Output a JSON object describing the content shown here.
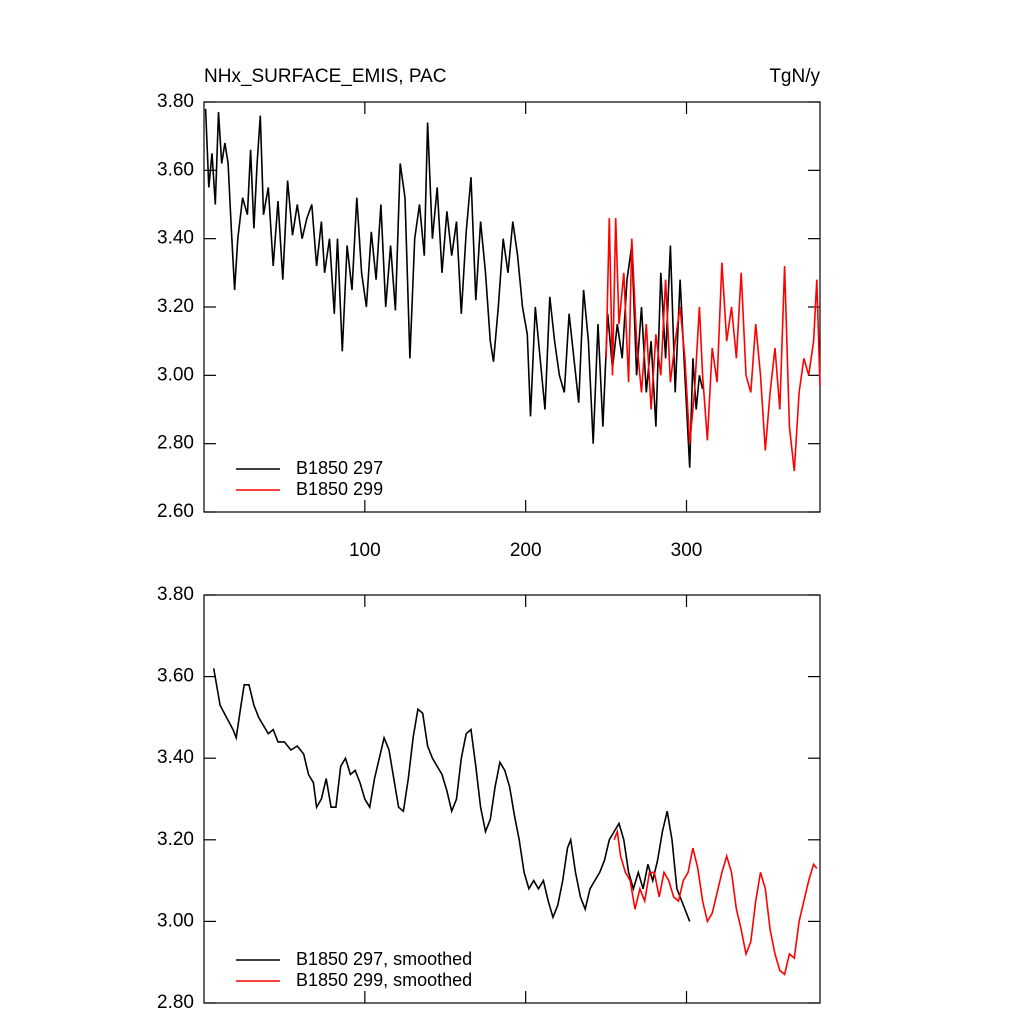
{
  "chart_data": [
    {
      "type": "line",
      "title": "NHx_SURFACE_EMIS, PAC",
      "units": "TgN/y",
      "xlim": [
        0,
        383
      ],
      "xticks": [
        100,
        200,
        300
      ],
      "xtick_labels": true,
      "ylim": [
        2.6,
        3.8
      ],
      "yticks": [
        {
          "value": 2.6,
          "label": "2.60"
        },
        {
          "value": 2.8,
          "label": "2.80"
        },
        {
          "value": 3.0,
          "label": "3.00"
        },
        {
          "value": 3.2,
          "label": "3.20"
        },
        {
          "value": 3.4,
          "label": "3.40"
        },
        {
          "value": 3.6,
          "label": "3.60"
        },
        {
          "value": 3.8,
          "label": "3.80"
        }
      ],
      "legend": "lower left",
      "series": [
        {
          "name": "B1850 297",
          "color": "#000000",
          "x": [
            1,
            3,
            5,
            7,
            9,
            11,
            13,
            15,
            17,
            19,
            21,
            24,
            27,
            29,
            31,
            33,
            35,
            37,
            40,
            43,
            46,
            49,
            52,
            55,
            58,
            61,
            64,
            67,
            70,
            73,
            75,
            78,
            81,
            83,
            86,
            89,
            92,
            95,
            98,
            101,
            104,
            107,
            110,
            113,
            116,
            119,
            122,
            125,
            128,
            131,
            134,
            137,
            139,
            142,
            145,
            148,
            151,
            154,
            157,
            160,
            163,
            166,
            169,
            172,
            175,
            178,
            180,
            183,
            186,
            189,
            192,
            195,
            198,
            201,
            203,
            206,
            209,
            212,
            215,
            218,
            221,
            224,
            227,
            230,
            233,
            236,
            239,
            242,
            245,
            248,
            251,
            254,
            257,
            260,
            263,
            266,
            269,
            272,
            275,
            278,
            281,
            284,
            287,
            290,
            293,
            296,
            299,
            302,
            304,
            306,
            308,
            310
          ],
          "values": [
            3.78,
            3.55,
            3.65,
            3.5,
            3.77,
            3.62,
            3.68,
            3.62,
            3.43,
            3.25,
            3.4,
            3.52,
            3.47,
            3.66,
            3.43,
            3.62,
            3.76,
            3.47,
            3.55,
            3.32,
            3.51,
            3.28,
            3.57,
            3.41,
            3.5,
            3.4,
            3.46,
            3.5,
            3.32,
            3.45,
            3.3,
            3.4,
            3.18,
            3.4,
            3.07,
            3.38,
            3.25,
            3.52,
            3.3,
            3.2,
            3.42,
            3.28,
            3.5,
            3.2,
            3.38,
            3.19,
            3.62,
            3.52,
            3.05,
            3.4,
            3.5,
            3.35,
            3.74,
            3.4,
            3.55,
            3.3,
            3.48,
            3.35,
            3.45,
            3.18,
            3.42,
            3.58,
            3.22,
            3.45,
            3.3,
            3.1,
            3.04,
            3.2,
            3.4,
            3.3,
            3.45,
            3.35,
            3.2,
            3.12,
            2.88,
            3.2,
            3.05,
            2.9,
            3.23,
            3.1,
            3.0,
            2.95,
            3.18,
            3.05,
            2.92,
            3.25,
            3.1,
            2.8,
            3.15,
            2.85,
            3.18,
            3.02,
            3.15,
            3.05,
            3.28,
            3.38,
            3.0,
            3.2,
            2.95,
            3.1,
            2.85,
            3.3,
            3.05,
            3.38,
            2.95,
            3.28,
            3.0,
            2.73,
            3.05,
            2.9,
            3.0,
            2.96
          ]
        },
        {
          "name": "B1850 299",
          "color": "#ff0000",
          "x": [
            250,
            252,
            254,
            256,
            258,
            261,
            264,
            266,
            269,
            272,
            275,
            278,
            281,
            284,
            287,
            290,
            293,
            296,
            299,
            302,
            305,
            308,
            310,
            313,
            316,
            319,
            322,
            325,
            328,
            331,
            334,
            337,
            340,
            343,
            346,
            349,
            352,
            355,
            358,
            361,
            364,
            367,
            370,
            373,
            376,
            379,
            381,
            383
          ],
          "values": [
            3.05,
            3.46,
            3.0,
            3.46,
            3.15,
            3.3,
            2.98,
            3.4,
            3.1,
            2.95,
            3.15,
            2.9,
            3.12,
            3.0,
            3.28,
            2.98,
            3.1,
            3.2,
            3.05,
            2.8,
            2.95,
            3.2,
            3.0,
            2.81,
            3.08,
            2.98,
            3.33,
            3.1,
            3.2,
            3.05,
            3.3,
            3.0,
            2.95,
            3.15,
            3.0,
            2.78,
            2.95,
            3.08,
            2.9,
            3.32,
            2.85,
            2.72,
            2.95,
            3.05,
            3.0,
            3.1,
            3.28,
            2.97
          ]
        }
      ]
    },
    {
      "type": "line",
      "xlim": [
        0,
        383
      ],
      "xticks": [
        100,
        200,
        300
      ],
      "xtick_labels": false,
      "ylim": [
        2.8,
        3.8
      ],
      "yticks": [
        {
          "value": 2.8,
          "label": "2.80"
        },
        {
          "value": 3.0,
          "label": "3.00"
        },
        {
          "value": 3.2,
          "label": "3.20"
        },
        {
          "value": 3.4,
          "label": "3.40"
        },
        {
          "value": 3.6,
          "label": "3.60"
        },
        {
          "value": 3.8,
          "label": "3.80"
        }
      ],
      "legend": "lower left",
      "series": [
        {
          "name": "B1850 297, smoothed",
          "color": "#000000",
          "x": [
            6,
            10,
            14,
            18,
            20,
            23,
            25,
            28,
            31,
            34,
            37,
            40,
            43,
            46,
            50,
            54,
            58,
            62,
            65,
            68,
            70,
            73,
            76,
            79,
            82,
            85,
            88,
            91,
            94,
            97,
            100,
            103,
            106,
            109,
            112,
            115,
            118,
            121,
            124,
            127,
            130,
            133,
            136,
            139,
            142,
            145,
            148,
            151,
            154,
            157,
            160,
            163,
            166,
            169,
            172,
            175,
            178,
            181,
            184,
            187,
            190,
            193,
            196,
            199,
            202,
            205,
            208,
            211,
            214,
            217,
            220,
            223,
            226,
            228,
            231,
            234,
            237,
            240,
            243,
            246,
            249,
            252,
            255,
            258,
            261,
            264,
            267,
            270,
            273,
            276,
            279,
            282,
            285,
            288,
            291,
            294,
            297,
            300,
            302
          ],
          "values": [
            3.62,
            3.53,
            3.5,
            3.47,
            3.45,
            3.53,
            3.58,
            3.58,
            3.53,
            3.5,
            3.48,
            3.46,
            3.47,
            3.44,
            3.44,
            3.42,
            3.43,
            3.41,
            3.36,
            3.34,
            3.28,
            3.3,
            3.35,
            3.28,
            3.28,
            3.38,
            3.4,
            3.36,
            3.37,
            3.34,
            3.3,
            3.28,
            3.35,
            3.4,
            3.45,
            3.42,
            3.35,
            3.28,
            3.27,
            3.35,
            3.45,
            3.52,
            3.51,
            3.43,
            3.4,
            3.38,
            3.36,
            3.32,
            3.27,
            3.3,
            3.4,
            3.46,
            3.47,
            3.38,
            3.28,
            3.22,
            3.25,
            3.33,
            3.39,
            3.37,
            3.33,
            3.26,
            3.2,
            3.12,
            3.08,
            3.1,
            3.08,
            3.1,
            3.05,
            3.01,
            3.04,
            3.1,
            3.18,
            3.2,
            3.12,
            3.06,
            3.03,
            3.08,
            3.1,
            3.12,
            3.15,
            3.2,
            3.22,
            3.24,
            3.2,
            3.12,
            3.08,
            3.12,
            3.08,
            3.14,
            3.1,
            3.15,
            3.22,
            3.27,
            3.2,
            3.08,
            3.05,
            3.02,
            3.0
          ]
        },
        {
          "name": "B1850 299, smoothed",
          "color": "#ff0000",
          "x": [
            255,
            257,
            259,
            262,
            265,
            268,
            271,
            274,
            277,
            280,
            283,
            286,
            289,
            292,
            295,
            298,
            301,
            304,
            307,
            310,
            313,
            316,
            319,
            322,
            325,
            328,
            331,
            334,
            337,
            340,
            343,
            346,
            349,
            352,
            355,
            358,
            361,
            364,
            367,
            370,
            373,
            376,
            379,
            381
          ],
          "values": [
            3.2,
            3.22,
            3.16,
            3.12,
            3.1,
            3.03,
            3.08,
            3.05,
            3.12,
            3.12,
            3.06,
            3.12,
            3.1,
            3.06,
            3.05,
            3.1,
            3.12,
            3.18,
            3.13,
            3.05,
            3.0,
            3.02,
            3.07,
            3.12,
            3.16,
            3.12,
            3.03,
            2.98,
            2.92,
            2.95,
            3.05,
            3.12,
            3.08,
            2.98,
            2.92,
            2.88,
            2.87,
            2.92,
            2.91,
            3.0,
            3.05,
            3.1,
            3.14,
            3.13
          ]
        }
      ]
    }
  ]
}
